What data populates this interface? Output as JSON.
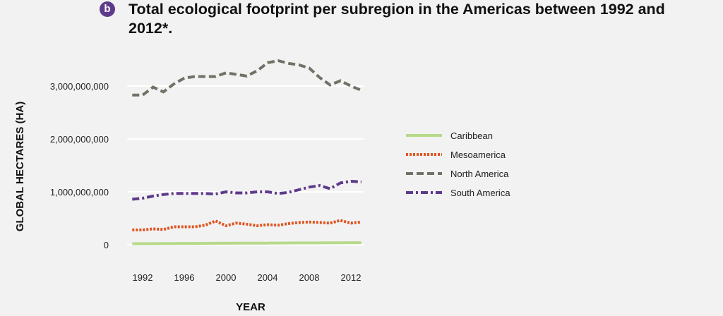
{
  "badge": "b",
  "title": "Total ecological footprint per subregion in the Americas between 1992 and 2012*.",
  "chart_data": {
    "type": "line",
    "title": "Total ecological footprint per subregion in the Americas between 1992 and 2012*.",
    "xlabel": "YEAR",
    "ylabel": "GLOBAL HECTARES (HA)",
    "x": [
      1991,
      1992,
      1993,
      1994,
      1995,
      1996,
      1997,
      1998,
      1999,
      2000,
      2001,
      2002,
      2003,
      2004,
      2005,
      2006,
      2007,
      2008,
      2009,
      2010,
      2011,
      2012,
      2013
    ],
    "xticks": [
      1992,
      1996,
      2000,
      2004,
      2008,
      2012
    ],
    "xtick_labels": [
      "1992",
      "1996",
      "2000",
      "2004",
      "2008",
      "2012"
    ],
    "yticks": [
      0,
      1000000000,
      2000000000,
      3000000000
    ],
    "ytick_labels": [
      "0",
      "1,000,000,000",
      "2,000,000,000",
      "3,000,000,000"
    ],
    "xlim": [
      1991,
      2013
    ],
    "ylim": [
      0,
      3500000000
    ],
    "grid": "horizontal",
    "legend": "right",
    "series": [
      {
        "name": "Caribbean",
        "color": "#b8d98a",
        "dash": "solid",
        "values": [
          20000000,
          21000000,
          22000000,
          23000000,
          24000000,
          25000000,
          26000000,
          27000000,
          28000000,
          28000000,
          29000000,
          30000000,
          30000000,
          31000000,
          32000000,
          33000000,
          34000000,
          35000000,
          35000000,
          36000000,
          37000000,
          38000000,
          39000000
        ]
      },
      {
        "name": "Mesoamerica",
        "color": "#e0531f",
        "dash": "dotted",
        "values": [
          280000000,
          280000000,
          300000000,
          290000000,
          340000000,
          340000000,
          340000000,
          370000000,
          450000000,
          360000000,
          410000000,
          390000000,
          360000000,
          380000000,
          370000000,
          400000000,
          420000000,
          430000000,
          420000000,
          410000000,
          460000000,
          410000000,
          430000000
        ]
      },
      {
        "name": "North America",
        "color": "#6f7265",
        "dash": "dashed",
        "values": [
          2830000000,
          2830000000,
          2980000000,
          2890000000,
          3040000000,
          3150000000,
          3180000000,
          3180000000,
          3180000000,
          3250000000,
          3220000000,
          3190000000,
          3290000000,
          3440000000,
          3480000000,
          3430000000,
          3400000000,
          3340000000,
          3160000000,
          3020000000,
          3100000000,
          3000000000,
          2920000000
        ]
      },
      {
        "name": "South America",
        "color": "#5e3a8c",
        "dash": "dashdot",
        "values": [
          860000000,
          880000000,
          920000000,
          950000000,
          970000000,
          970000000,
          970000000,
          970000000,
          960000000,
          1000000000,
          980000000,
          980000000,
          1000000000,
          1000000000,
          970000000,
          990000000,
          1040000000,
          1090000000,
          1120000000,
          1060000000,
          1170000000,
          1200000000,
          1190000000
        ]
      }
    ]
  }
}
